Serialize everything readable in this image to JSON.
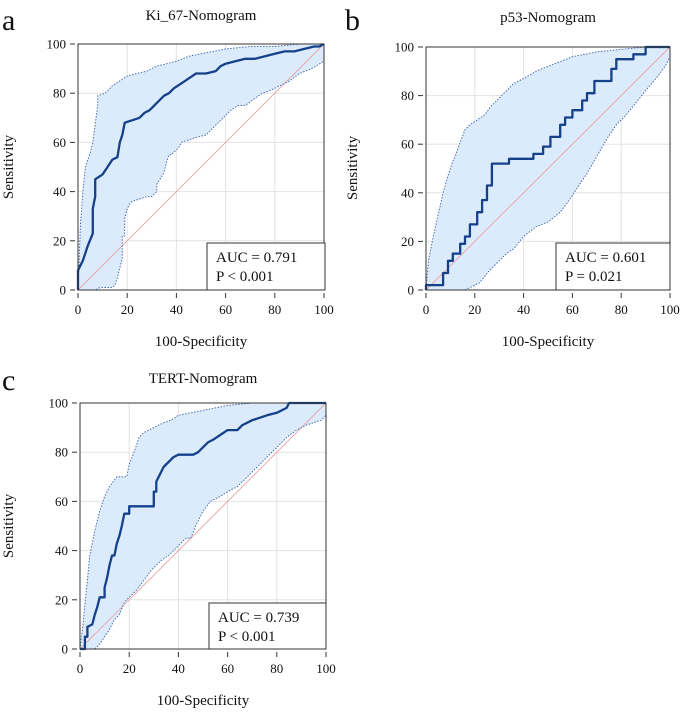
{
  "chart_data": [
    {
      "type": "line",
      "panel": "a",
      "title": "Ki_67-Nomogram",
      "xlabel": "100-Specificity",
      "ylabel": "Sensitivity",
      "xlim": [
        0,
        100
      ],
      "ylim": [
        0,
        100
      ],
      "ticks": [
        "0",
        "20",
        "40",
        "60",
        "80",
        "100"
      ],
      "grid": true,
      "legend_placement": "bottom-right",
      "auc_text": "AUC = 0.791",
      "p_text": "P < 0.001",
      "roc": [
        [
          0,
          0
        ],
        [
          0,
          8
        ],
        [
          2,
          12
        ],
        [
          4,
          18
        ],
        [
          6,
          23
        ],
        [
          6,
          33
        ],
        [
          7,
          38
        ],
        [
          7,
          45
        ],
        [
          10,
          47
        ],
        [
          12,
          50
        ],
        [
          14,
          53
        ],
        [
          16,
          54
        ],
        [
          17,
          60
        ],
        [
          18,
          63
        ],
        [
          19,
          68
        ],
        [
          22,
          69
        ],
        [
          25,
          70
        ],
        [
          27,
          72
        ],
        [
          29,
          73
        ],
        [
          31,
          75
        ],
        [
          33,
          77
        ],
        [
          35,
          79
        ],
        [
          37,
          80
        ],
        [
          39,
          82
        ],
        [
          42,
          84
        ],
        [
          45,
          86
        ],
        [
          48,
          88
        ],
        [
          52,
          88
        ],
        [
          56,
          89
        ],
        [
          58,
          91
        ],
        [
          60,
          92
        ],
        [
          64,
          93
        ],
        [
          68,
          94
        ],
        [
          72,
          94
        ],
        [
          76,
          95
        ],
        [
          80,
          96
        ],
        [
          84,
          97
        ],
        [
          88,
          97
        ],
        [
          92,
          98
        ],
        [
          96,
          99
        ],
        [
          98,
          99
        ],
        [
          100,
          100
        ]
      ],
      "upper": [
        [
          0,
          0
        ],
        [
          1,
          27
        ],
        [
          2,
          40
        ],
        [
          3,
          50
        ],
        [
          5,
          56
        ],
        [
          6,
          60
        ],
        [
          8,
          75
        ],
        [
          8,
          79
        ],
        [
          11,
          80
        ],
        [
          14,
          83
        ],
        [
          17,
          85
        ],
        [
          20,
          87
        ],
        [
          24,
          88
        ],
        [
          28,
          89
        ],
        [
          32,
          91
        ],
        [
          36,
          92
        ],
        [
          40,
          93
        ],
        [
          45,
          95
        ],
        [
          50,
          96
        ],
        [
          55,
          97
        ],
        [
          60,
          98
        ],
        [
          70,
          99
        ],
        [
          80,
          99
        ],
        [
          90,
          100
        ],
        [
          100,
          100
        ]
      ],
      "lower": [
        [
          0,
          0
        ],
        [
          3,
          0
        ],
        [
          7,
          0
        ],
        [
          9,
          1
        ],
        [
          11,
          1
        ],
        [
          14,
          1
        ],
        [
          15,
          2
        ],
        [
          16,
          5
        ],
        [
          17,
          9
        ],
        [
          18,
          13
        ],
        [
          18,
          22
        ],
        [
          19,
          22
        ],
        [
          19,
          29
        ],
        [
          20,
          33
        ],
        [
          21,
          35
        ],
        [
          22,
          36
        ],
        [
          25,
          37
        ],
        [
          28,
          38
        ],
        [
          30,
          38
        ],
        [
          32,
          40
        ],
        [
          32,
          43
        ],
        [
          34,
          46
        ],
        [
          35,
          48
        ],
        [
          36,
          52
        ],
        [
          37,
          55
        ],
        [
          38,
          55
        ],
        [
          41,
          58
        ],
        [
          42,
          60
        ],
        [
          45,
          61
        ],
        [
          48,
          62
        ],
        [
          52,
          63
        ],
        [
          55,
          66
        ],
        [
          59,
          70
        ],
        [
          62,
          73
        ],
        [
          65,
          75
        ],
        [
          68,
          75
        ],
        [
          72,
          78
        ],
        [
          75,
          80
        ],
        [
          78,
          81
        ],
        [
          82,
          83
        ],
        [
          86,
          85
        ],
        [
          90,
          88
        ],
        [
          95,
          90
        ],
        [
          100,
          93
        ],
        [
          100,
          100
        ]
      ]
    },
    {
      "type": "line",
      "panel": "b",
      "title": "p53-Nomogram",
      "xlabel": "100-Specificity",
      "ylabel": "Sensitivity",
      "xlim": [
        0,
        100
      ],
      "ylim": [
        0,
        100
      ],
      "ticks": [
        "0",
        "20",
        "40",
        "60",
        "80",
        "100"
      ],
      "grid": true,
      "legend_placement": "bottom-right",
      "auc_text": "AUC = 0.601",
      "p_text": "P = 0.021",
      "roc": [
        [
          0,
          0
        ],
        [
          0,
          2
        ],
        [
          7,
          2
        ],
        [
          7,
          7
        ],
        [
          9,
          7
        ],
        [
          9,
          12
        ],
        [
          11,
          12
        ],
        [
          11,
          15
        ],
        [
          14,
          15
        ],
        [
          14,
          19
        ],
        [
          16,
          19
        ],
        [
          16,
          22
        ],
        [
          18,
          22
        ],
        [
          18,
          27
        ],
        [
          21,
          27
        ],
        [
          21,
          32
        ],
        [
          23,
          32
        ],
        [
          23,
          37
        ],
        [
          25,
          37
        ],
        [
          25,
          43
        ],
        [
          27,
          43
        ],
        [
          27,
          52
        ],
        [
          34,
          52
        ],
        [
          34,
          54
        ],
        [
          44,
          54
        ],
        [
          44,
          56
        ],
        [
          48,
          56
        ],
        [
          48,
          59
        ],
        [
          51,
          59
        ],
        [
          51,
          63
        ],
        [
          55,
          63
        ],
        [
          55,
          68
        ],
        [
          57,
          68
        ],
        [
          57,
          71
        ],
        [
          60,
          71
        ],
        [
          60,
          74
        ],
        [
          64,
          74
        ],
        [
          64,
          78
        ],
        [
          66,
          78
        ],
        [
          66,
          81
        ],
        [
          69,
          81
        ],
        [
          69,
          86
        ],
        [
          76,
          86
        ],
        [
          76,
          91
        ],
        [
          78,
          91
        ],
        [
          78,
          95
        ],
        [
          85,
          95
        ],
        [
          85,
          97
        ],
        [
          90,
          97
        ],
        [
          90,
          100
        ],
        [
          100,
          100
        ]
      ],
      "upper": [
        [
          0,
          0
        ],
        [
          1,
          12
        ],
        [
          3,
          22
        ],
        [
          5,
          31
        ],
        [
          7,
          40
        ],
        [
          9,
          47
        ],
        [
          11,
          53
        ],
        [
          12,
          55
        ],
        [
          13,
          58
        ],
        [
          16,
          66
        ],
        [
          18,
          68
        ],
        [
          21,
          70
        ],
        [
          24,
          72
        ],
        [
          27,
          76
        ],
        [
          30,
          79
        ],
        [
          33,
          82
        ],
        [
          36,
          85
        ],
        [
          40,
          87
        ],
        [
          45,
          90
        ],
        [
          50,
          92
        ],
        [
          55,
          94
        ],
        [
          60,
          96
        ],
        [
          70,
          98
        ],
        [
          80,
          99
        ],
        [
          90,
          100
        ],
        [
          100,
          100
        ]
      ],
      "lower": [
        [
          0,
          0
        ],
        [
          16,
          0
        ],
        [
          22,
          3
        ],
        [
          26,
          8
        ],
        [
          30,
          12
        ],
        [
          33,
          15
        ],
        [
          36,
          17
        ],
        [
          40,
          22
        ],
        [
          45,
          26
        ],
        [
          50,
          28
        ],
        [
          55,
          32
        ],
        [
          58,
          36
        ],
        [
          62,
          42
        ],
        [
          66,
          48
        ],
        [
          70,
          55
        ],
        [
          74,
          62
        ],
        [
          78,
          68
        ],
        [
          82,
          72
        ],
        [
          86,
          77
        ],
        [
          90,
          82
        ],
        [
          95,
          88
        ],
        [
          98,
          92
        ],
        [
          100,
          96
        ],
        [
          100,
          100
        ]
      ]
    },
    {
      "type": "line",
      "panel": "c",
      "title": "TERT-Nomogram",
      "xlabel": "100-Specificity",
      "ylabel": "Sensitivity",
      "xlim": [
        0,
        100
      ],
      "ylim": [
        0,
        100
      ],
      "ticks": [
        "0",
        "20",
        "40",
        "60",
        "80",
        "100"
      ],
      "grid": true,
      "legend_placement": "bottom-right",
      "auc_text": "AUC = 0.739",
      "p_text": "P < 0.001",
      "roc": [
        [
          0,
          0
        ],
        [
          2,
          0
        ],
        [
          2,
          5
        ],
        [
          3,
          5
        ],
        [
          3,
          9
        ],
        [
          5,
          10
        ],
        [
          6,
          14
        ],
        [
          7,
          17
        ],
        [
          8,
          21
        ],
        [
          10,
          21
        ],
        [
          10,
          25
        ],
        [
          11,
          29
        ],
        [
          12,
          34
        ],
        [
          13,
          38
        ],
        [
          14,
          38
        ],
        [
          15,
          43
        ],
        [
          16,
          46
        ],
        [
          17,
          50
        ],
        [
          18,
          55
        ],
        [
          20,
          55
        ],
        [
          20,
          58
        ],
        [
          30,
          58
        ],
        [
          30,
          64
        ],
        [
          31,
          64
        ],
        [
          31,
          68
        ],
        [
          32,
          70
        ],
        [
          33,
          72
        ],
        [
          34,
          74
        ],
        [
          36,
          76
        ],
        [
          38,
          78
        ],
        [
          40,
          79
        ],
        [
          46,
          79
        ],
        [
          48,
          80
        ],
        [
          50,
          82
        ],
        [
          52,
          84
        ],
        [
          54,
          85
        ],
        [
          57,
          87
        ],
        [
          60,
          89
        ],
        [
          64,
          89
        ],
        [
          66,
          91
        ],
        [
          68,
          92
        ],
        [
          70,
          93
        ],
        [
          73,
          94
        ],
        [
          76,
          95
        ],
        [
          80,
          96
        ],
        [
          82,
          97
        ],
        [
          84,
          98
        ],
        [
          85,
          100
        ],
        [
          100,
          100
        ]
      ],
      "upper": [
        [
          0,
          0
        ],
        [
          1,
          8
        ],
        [
          2,
          18
        ],
        [
          3,
          28
        ],
        [
          4,
          38
        ],
        [
          6,
          48
        ],
        [
          8,
          56
        ],
        [
          10,
          62
        ],
        [
          12,
          66
        ],
        [
          15,
          70
        ],
        [
          19,
          70
        ],
        [
          20,
          75
        ],
        [
          22,
          80
        ],
        [
          24,
          86
        ],
        [
          26,
          88
        ],
        [
          30,
          90
        ],
        [
          34,
          92
        ],
        [
          37,
          93
        ],
        [
          40,
          95
        ],
        [
          45,
          96
        ],
        [
          50,
          97
        ],
        [
          55,
          98
        ],
        [
          60,
          99
        ],
        [
          70,
          100
        ],
        [
          100,
          100
        ]
      ],
      "lower": [
        [
          0,
          0
        ],
        [
          6,
          0
        ],
        [
          8,
          2
        ],
        [
          10,
          5
        ],
        [
          12,
          8
        ],
        [
          14,
          12
        ],
        [
          16,
          14
        ],
        [
          18,
          19
        ],
        [
          20,
          21
        ],
        [
          23,
          24
        ],
        [
          26,
          28
        ],
        [
          29,
          32
        ],
        [
          33,
          36
        ],
        [
          36,
          38
        ],
        [
          40,
          42
        ],
        [
          43,
          45
        ],
        [
          45,
          45
        ],
        [
          47,
          50
        ],
        [
          50,
          56
        ],
        [
          53,
          60
        ],
        [
          57,
          62
        ],
        [
          60,
          64
        ],
        [
          64,
          66
        ],
        [
          68,
          70
        ],
        [
          72,
          74
        ],
        [
          76,
          78
        ],
        [
          80,
          82
        ],
        [
          84,
          86
        ],
        [
          88,
          89
        ],
        [
          92,
          91
        ],
        [
          95,
          92
        ],
        [
          98,
          93
        ],
        [
          100,
          95
        ],
        [
          100,
          100
        ]
      ]
    }
  ]
}
